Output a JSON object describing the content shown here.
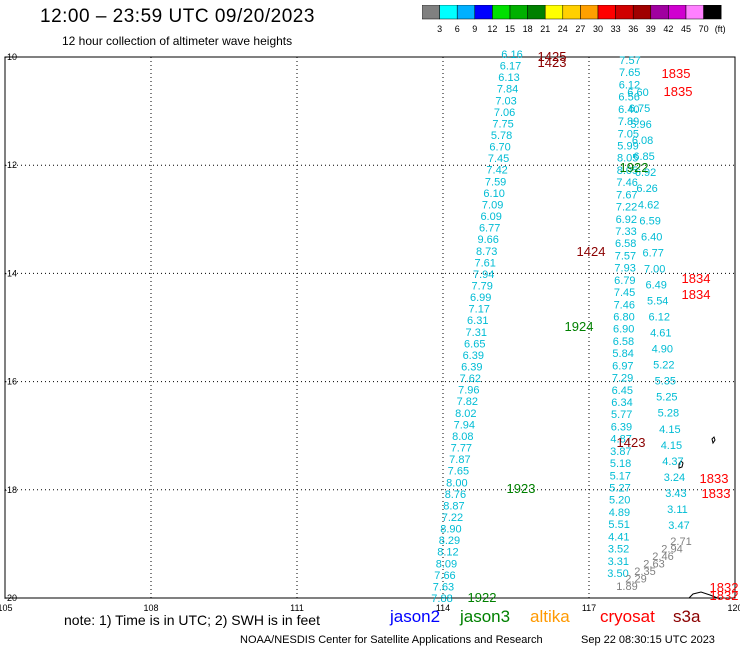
{
  "header": {
    "title": "12:00 – 23:59 UTC 09/20/2023",
    "subtitle": "12 hour collection of altimeter wave heights"
  },
  "colorbar": {
    "unit": "(ft)",
    "ticks": [
      "3",
      "6",
      "9",
      "12",
      "15",
      "18",
      "21",
      "24",
      "27",
      "30",
      "33",
      "36",
      "39",
      "42",
      "45",
      "70"
    ],
    "colors": [
      "#808080",
      "#00ffff",
      "#00b0ff",
      "#0000ff",
      "#00e000",
      "#00b000",
      "#008000",
      "#ffff00",
      "#ffd000",
      "#ffa000",
      "#ff0000",
      "#d00000",
      "#a00000",
      "#a000a0",
      "#d000d0",
      "#ff80ff",
      "#000000"
    ]
  },
  "axes": {
    "lat_labels": [
      "-10",
      "-12",
      "-14",
      "-16",
      "-18",
      "-20"
    ],
    "lon_labels": [
      "105",
      "108",
      "111",
      "114",
      "117",
      "120"
    ]
  },
  "legend": {
    "note": "note:  1) Time is in UTC;  2) SWH is in feet",
    "satellites": [
      {
        "name": "jason2",
        "color": "#0000ff"
      },
      {
        "name": "jason3",
        "color": "#008000"
      },
      {
        "name": "altika",
        "color": "#ff9900"
      },
      {
        "name": "cryosat",
        "color": "#ff0000"
      },
      {
        "name": "s3a",
        "color": "#8b0000"
      }
    ]
  },
  "footer": {
    "source": "NOAA/NESDIS Center for Satellite Applications and Research",
    "timestamp": "Sep 22 08:30:15 UTC 2023"
  },
  "track_a": {
    "color": "#00bcd4",
    "values": [
      "6.16",
      "6.17",
      "6.13",
      "7.84",
      "7.03",
      "7.06",
      "7.75",
      "5.78",
      "6.70",
      "7.45",
      "7.42",
      "7.59",
      "6.10",
      "7.09",
      "6.09",
      "6.77",
      "9.66",
      "8.73",
      "7.61",
      "7.94",
      "7.79",
      "6.99",
      "7.17",
      "6.31",
      "7.31",
      "6.65",
      "6.39",
      "6.39",
      "7.62",
      "7.96",
      "7.82",
      "8.02",
      "7.94",
      "8.08",
      "7.77",
      "7.87",
      "7.65",
      "8.00",
      "8.76",
      "8.87",
      "7.22",
      "8.90",
      "8.29",
      "8.12",
      "8.09",
      "7.66",
      "7.63",
      "7.88"
    ]
  },
  "track_b": {
    "color": "#00bcd4",
    "values": [
      "7.57",
      "7.65",
      "6.12",
      "6.56",
      "6.40",
      "7.89",
      "7.05",
      "5.99",
      "8.05",
      "8.05",
      "7.46",
      "7.67",
      "7.22",
      "6.92",
      "7.33",
      "6.58",
      "7.57",
      "7.93",
      "6.79",
      "7.45",
      "7.46",
      "6.80",
      "6.90",
      "6.58",
      "5.84",
      "6.97",
      "7.29",
      "6.45",
      "6.34",
      "5.77",
      "6.39",
      "4.87",
      "3.87",
      "5.18",
      "5.17",
      "5.27",
      "5.20",
      "4.89",
      "5.51",
      "4.41",
      "3.52",
      "3.31",
      "3.50"
    ]
  },
  "track_c": {
    "color": "#00bcd4",
    "values": [
      "6.60",
      "6.75",
      "5.96",
      "6.08",
      "6.85",
      "6.92",
      "6.26",
      "4.62",
      "6.59",
      "6.40",
      "6.77",
      "7.00",
      "6.49",
      "5.54",
      "6.12",
      "4.61",
      "4.90",
      "5.22",
      "5.35",
      "5.25",
      "5.28",
      "4.15",
      "4.15",
      "4.37",
      "3.24",
      "3.43",
      "3.11",
      "3.47"
    ]
  },
  "track_c_gray": {
    "color": "#808080",
    "values": [
      "2.71",
      "2.94",
      "2.46",
      "2.63",
      "2.35",
      "2.29",
      "1.89"
    ]
  },
  "time_labels": [
    {
      "text": "1425",
      "color": "#8b0000"
    },
    {
      "text": "1423",
      "color": "#8b0000"
    },
    {
      "text": "1835",
      "color": "#ff0000"
    },
    {
      "text": "1835",
      "color": "#ff0000"
    },
    {
      "text": "1922",
      "color": "#008000"
    },
    {
      "text": "1424",
      "color": "#8b0000"
    },
    {
      "text": "1834",
      "color": "#ff0000"
    },
    {
      "text": "1834",
      "color": "#ff0000"
    },
    {
      "text": "1924",
      "color": "#008000"
    },
    {
      "text": "1423",
      "color": "#8b0000"
    },
    {
      "text": "1833",
      "color": "#ff0000"
    },
    {
      "text": "1833",
      "color": "#ff0000"
    },
    {
      "text": "1923",
      "color": "#008000"
    },
    {
      "text": "1922",
      "color": "#008000"
    },
    {
      "text": "1832",
      "color": "#ff0000"
    },
    {
      "text": "1832",
      "color": "#ff0000"
    }
  ]
}
